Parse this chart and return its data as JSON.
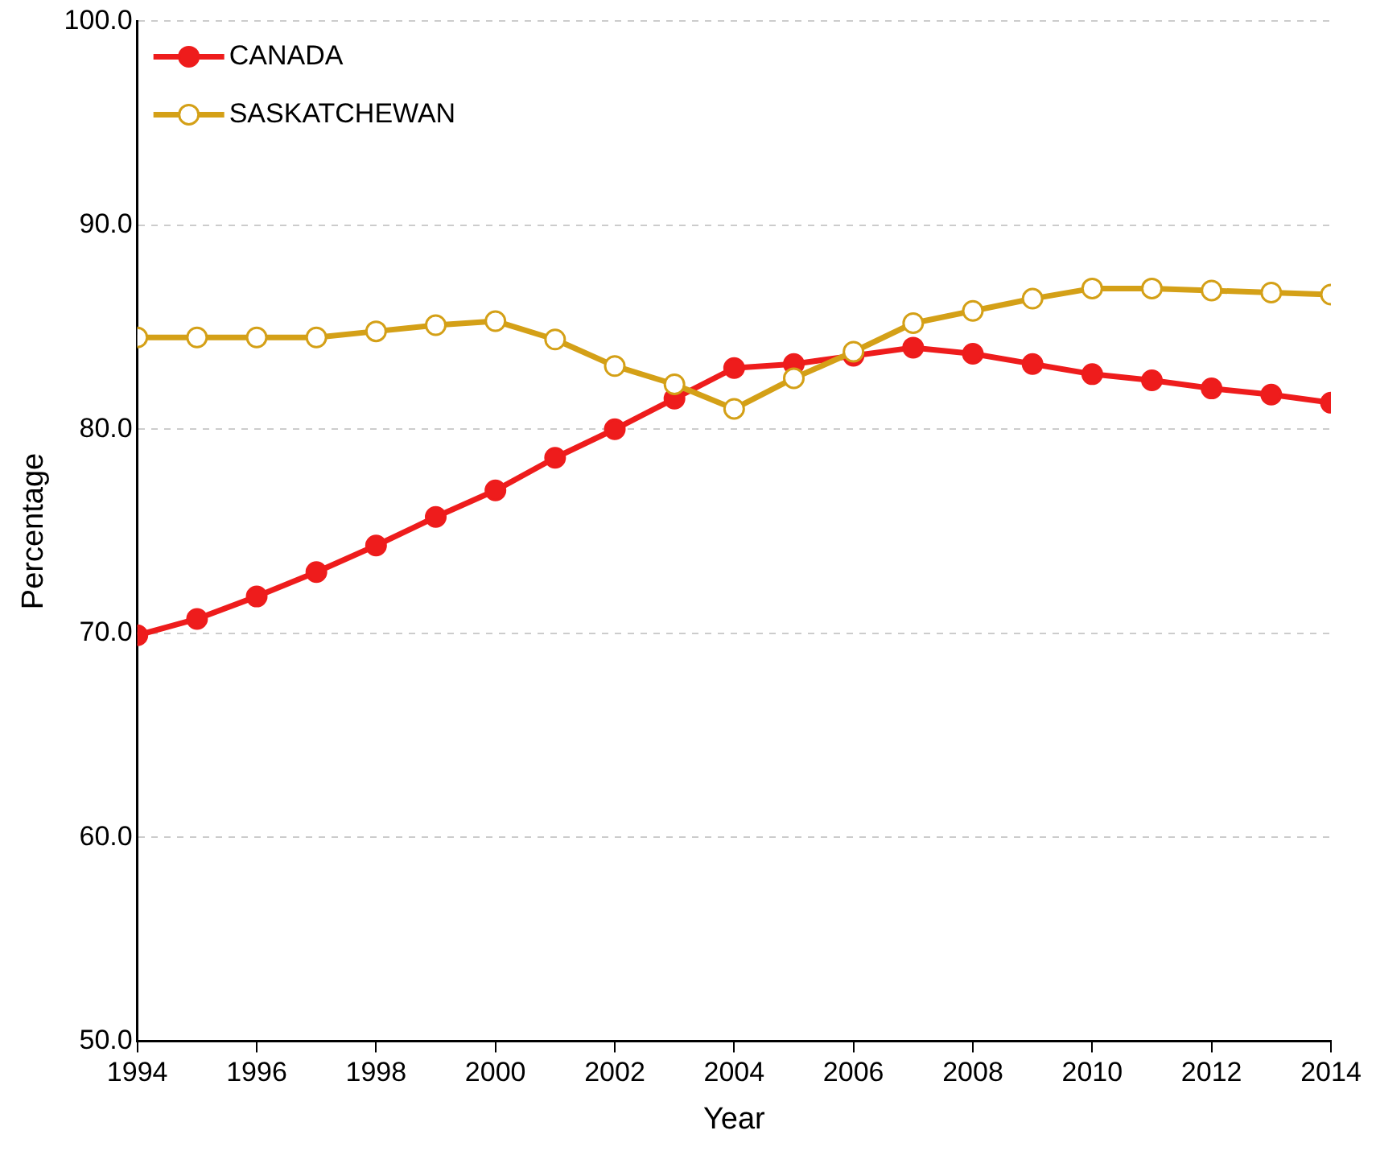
{
  "chart_data": {
    "type": "line",
    "xlabel": "Year",
    "ylabel": "Percentage",
    "x": [
      1994,
      1995,
      1996,
      1997,
      1998,
      1999,
      2000,
      2001,
      2002,
      2003,
      2004,
      2005,
      2006,
      2007,
      2008,
      2009,
      2010,
      2011,
      2012,
      2013,
      2014
    ],
    "series": [
      {
        "name": "CANADA",
        "color": "#ee1c1c",
        "marker": "circle",
        "values": [
          69.9,
          70.7,
          71.8,
          73.0,
          74.3,
          75.7,
          77.0,
          78.6,
          80.0,
          81.5,
          83.0,
          83.2,
          83.6,
          84.0,
          83.7,
          83.2,
          82.7,
          82.4,
          82.0,
          81.7,
          81.3
        ]
      },
      {
        "name": "SASKATCHEWAN",
        "color": "#d4a017",
        "marker": "circle",
        "values": [
          84.5,
          84.5,
          84.5,
          84.5,
          84.8,
          85.1,
          85.3,
          84.4,
          83.1,
          82.2,
          81.0,
          82.5,
          83.8,
          85.2,
          85.8,
          86.4,
          86.9,
          86.9,
          86.8,
          86.7,
          86.6
        ]
      }
    ],
    "xlim": [
      1994,
      2014
    ],
    "xticks": [
      1994,
      1996,
      1998,
      2000,
      2002,
      2004,
      2006,
      2008,
      2010,
      2012,
      2014
    ],
    "ylim": [
      50,
      100
    ],
    "yticks": [
      {
        "value": 50,
        "label": "50.0"
      },
      {
        "value": 60,
        "label": "60.0"
      },
      {
        "value": 70,
        "label": "70.0"
      },
      {
        "value": 80,
        "label": "80.0"
      },
      {
        "value": 90,
        "label": "90.0"
      },
      {
        "value": 100,
        "label": "100.0"
      }
    ],
    "grid": "y",
    "legend": "top left",
    "line_style": "solid"
  }
}
